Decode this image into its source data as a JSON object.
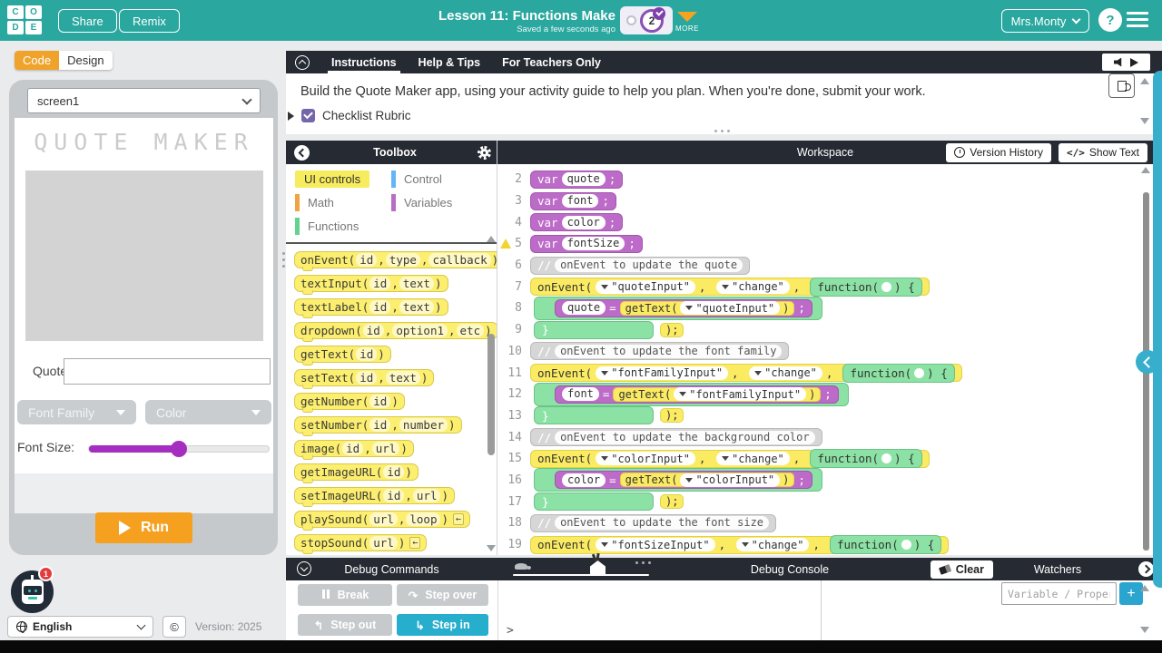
{
  "colors": {
    "header_teal": "#2aa79f",
    "orange": "#f5a01e",
    "dark_bar": "#262b33",
    "block_yellow": "#fbeb63",
    "block_green": "#8ce2a4",
    "block_purple": "#bd6bc8",
    "slider_purple": "#a52dbf",
    "debug_blue": "#28aecd"
  },
  "header": {
    "logo_letters": [
      "C",
      "O",
      "D",
      "E"
    ],
    "share_label": "Share",
    "remix_label": "Remix",
    "lesson_title": "Lesson 11: Functions Make",
    "saved_status": "Saved a few seconds ago",
    "progress_bubble": "2",
    "more_label": "MORE",
    "user_name": "Mrs.Monty",
    "help_label": "?"
  },
  "left_panel": {
    "code_tab": "Code",
    "design_tab": "Design",
    "screen_select": "screen1",
    "app_title": "QUOTE MAKER",
    "quote_label": "Quote:",
    "font_family_dropdown": "Font Family",
    "color_dropdown": "Color",
    "font_size_label": "Font Size:",
    "font_size_percent": 50,
    "run_label": "Run"
  },
  "footer": {
    "bot_badge": "1",
    "language": "English",
    "copyright": "©",
    "version": "Version: 2025"
  },
  "instructions": {
    "tabs": [
      "Instructions",
      "Help & Tips",
      "For Teachers Only"
    ],
    "body": "Build the Quote Maker app, using your activity guide to help you plan. When you're done, submit your work.",
    "checklist_label": "Checklist Rubric"
  },
  "toolbox": {
    "title": "Toolbox",
    "categories": [
      {
        "label": "UI controls",
        "color": "#f7ec5e",
        "active": true
      },
      {
        "label": "Control",
        "color": "#64b5f6",
        "active": false
      },
      {
        "label": "Math",
        "color": "#f0a33f",
        "active": false
      },
      {
        "label": "Variables",
        "color": "#b66fc3",
        "active": false
      },
      {
        "label": "Functions",
        "color": "#63d48e",
        "active": false
      }
    ],
    "blocks": [
      {
        "name": "onEvent",
        "params": [
          "id",
          "type",
          "callback"
        ],
        "more": false
      },
      {
        "name": "textInput",
        "params": [
          "id",
          "text"
        ],
        "more": false
      },
      {
        "name": "textLabel",
        "params": [
          "id",
          "text"
        ],
        "more": false
      },
      {
        "name": "dropdown",
        "params": [
          "id",
          "option1",
          "etc"
        ],
        "more": false
      },
      {
        "name": "getText",
        "params": [
          "id"
        ],
        "more": false
      },
      {
        "name": "setText",
        "params": [
          "id",
          "text"
        ],
        "more": false
      },
      {
        "name": "getNumber",
        "params": [
          "id"
        ],
        "more": false
      },
      {
        "name": "setNumber",
        "params": [
          "id",
          "number"
        ],
        "more": false
      },
      {
        "name": "image",
        "params": [
          "id",
          "url"
        ],
        "more": false
      },
      {
        "name": "getImageURL",
        "params": [
          "id"
        ],
        "more": false
      },
      {
        "name": "setImageURL",
        "params": [
          "id",
          "url"
        ],
        "more": false
      },
      {
        "name": "playSound",
        "params": [
          "url",
          "loop"
        ],
        "more": true
      },
      {
        "name": "stopSound",
        "params": [
          "url"
        ],
        "more": true
      }
    ]
  },
  "workspace": {
    "title": "Workspace",
    "version_history_label": "Version History",
    "show_text_label": "Show Text",
    "show_text_icon": "</>",
    "lines": [
      {
        "n": 2,
        "kind": "var",
        "name": "quote"
      },
      {
        "n": 3,
        "kind": "var",
        "name": "font"
      },
      {
        "n": 4,
        "kind": "var",
        "name": "color"
      },
      {
        "n": 5,
        "kind": "var",
        "name": "fontSize",
        "warning": true
      },
      {
        "n": 6,
        "kind": "comment",
        "text": "onEvent to update the quote"
      },
      {
        "n": 7,
        "kind": "event",
        "id": "quoteInput",
        "type": "change"
      },
      {
        "n": 8,
        "kind": "assign",
        "target": "quote",
        "fn": "getText",
        "arg": "quoteInput"
      },
      {
        "n": 9,
        "kind": "close"
      },
      {
        "n": 10,
        "kind": "comment",
        "text": "onEvent to update the font family"
      },
      {
        "n": 11,
        "kind": "event",
        "id": "fontFamilyInput",
        "type": "change"
      },
      {
        "n": 12,
        "kind": "assign",
        "target": "font",
        "fn": "getText",
        "arg": "fontFamilyInput"
      },
      {
        "n": 13,
        "kind": "close"
      },
      {
        "n": 14,
        "kind": "comment",
        "text": "onEvent to update the background color"
      },
      {
        "n": 15,
        "kind": "event",
        "id": "colorInput",
        "type": "change"
      },
      {
        "n": 16,
        "kind": "assign",
        "target": "color",
        "fn": "getText",
        "arg": "colorInput"
      },
      {
        "n": 17,
        "kind": "close"
      },
      {
        "n": 18,
        "kind": "comment",
        "text": "onEvent to update the font size"
      },
      {
        "n": 19,
        "kind": "event",
        "id": "fontSizeInput",
        "type": "change"
      }
    ]
  },
  "debug": {
    "commands_title": "Debug Commands",
    "console_title": "Debug Console",
    "clear_label": "Clear",
    "watchers_title": "Watchers",
    "break_label": "Break",
    "step_over_label": "Step over",
    "step_out_label": "Step out",
    "step_in_label": "Step in",
    "watcher_placeholder": "Variable / Property",
    "add_label": "+",
    "prompt": ">",
    "speed_percent": 60
  }
}
